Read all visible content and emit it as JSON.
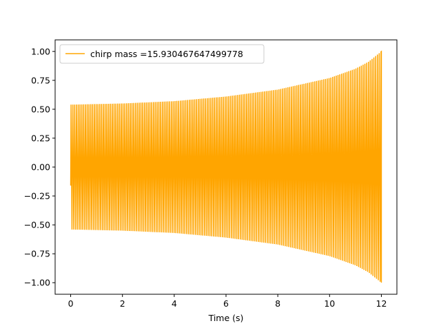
{
  "chart_data": {
    "type": "line",
    "title": "",
    "xlabel": "Time (s)",
    "ylabel": "",
    "xlim": [
      -0.6,
      12.6
    ],
    "ylim": [
      -1.1,
      1.1
    ],
    "x_ticks": [
      0,
      2,
      4,
      6,
      8,
      10,
      12
    ],
    "x_tick_labels": [
      "0",
      "2",
      "4",
      "6",
      "8",
      "10",
      "12"
    ],
    "y_ticks": [
      1.0,
      0.75,
      0.5,
      0.25,
      0.0,
      -0.25,
      -0.5,
      -0.75,
      -1.0
    ],
    "y_tick_labels": [
      "1.00",
      "0.75",
      "0.50",
      "0.25",
      "0.00",
      "−0.25",
      "−0.50",
      "−0.75",
      "−1.00"
    ],
    "grid": false,
    "legend_position": "top-left",
    "series": [
      {
        "name": "chirp mass =15.930467647499778",
        "color": "#FFA500",
        "t_start": 0.0,
        "t_end": 12.0,
        "start_value": -0.16,
        "end_value": 0.77,
        "envelope": {
          "x": [
            0.05,
            2,
            4,
            6,
            8,
            10,
            11,
            11.5,
            12
          ],
          "y": [
            0.54,
            0.55,
            0.57,
            0.61,
            0.67,
            0.77,
            0.85,
            0.91,
            1.0
          ]
        }
      }
    ]
  }
}
